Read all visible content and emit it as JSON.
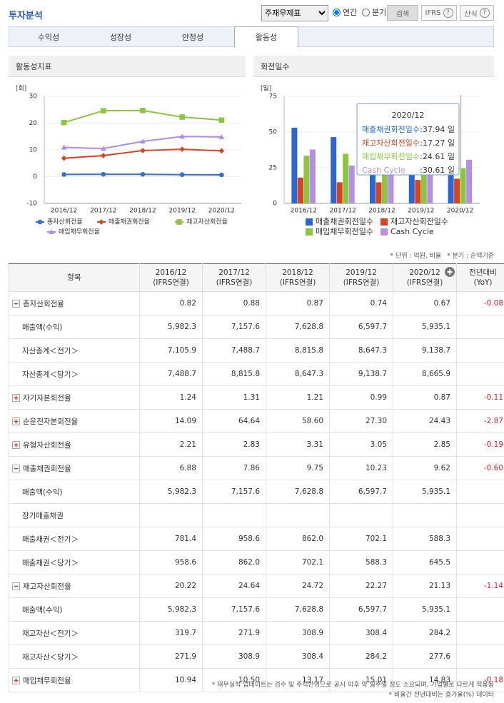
{
  "header": {
    "title": "투자분석",
    "select": "주재무제표",
    "radios": [
      {
        "label": "연간",
        "checked": true
      },
      {
        "label": "분기",
        "checked": false
      }
    ],
    "buttons": [
      {
        "label": "검색"
      },
      {
        "label": "IFRS",
        "help": "?"
      },
      {
        "label": "산식",
        "help": "?"
      }
    ]
  },
  "tabs": {
    "items": [
      "수익성",
      "성장성",
      "안정성",
      "활동성"
    ],
    "active": "활동성"
  },
  "chart_data": [
    {
      "type": "line",
      "title": "활동성지표",
      "y_label": "[회]",
      "categories": [
        "2016/12",
        "2017/12",
        "2018/12",
        "2019/12",
        "2020/12"
      ],
      "ylim": [
        -10,
        30
      ],
      "yticks": [
        -10,
        0,
        10,
        20,
        30
      ],
      "grid": true,
      "series": [
        {
          "name": "총자산회전율",
          "color": "#2f6fd6",
          "marker": "circle",
          "values": [
            0.82,
            0.88,
            0.87,
            0.74,
            0.67
          ]
        },
        {
          "name": "매출채권회전율",
          "color": "#d8431f",
          "marker": "diamond",
          "values": [
            6.88,
            7.86,
            9.75,
            10.23,
            9.62
          ]
        },
        {
          "name": "재고자산회전율",
          "color": "#8cc63f",
          "marker": "square",
          "values": [
            20.22,
            24.64,
            24.72,
            22.27,
            21.13
          ]
        },
        {
          "name": "매입채무회전율",
          "color": "#b08ae6",
          "marker": "triangle",
          "values": [
            10.94,
            10.5,
            13.17,
            15.01,
            14.83
          ]
        }
      ]
    },
    {
      "type": "bar",
      "title": "회전일수",
      "y_label": "[일]",
      "categories": [
        "2016/12",
        "2017/12",
        "2018/12",
        "2019/12",
        "2020/12"
      ],
      "ylim": [
        0,
        75
      ],
      "yticks": [
        0,
        25,
        50,
        75
      ],
      "grid": true,
      "hover_category": "2020/12",
      "series": [
        {
          "name": "매출채권회전일수",
          "color": "#2a67d6",
          "values": [
            53.05,
            46.44,
            37.44,
            35.68,
            37.94
          ],
          "tooltip_label": ":37.94 일"
        },
        {
          "name": "재고자산회전일수",
          "color": "#d8431f",
          "values": [
            18.05,
            14.81,
            14.77,
            16.39,
            17.27
          ],
          "tooltip_label": ":17.27 일"
        },
        {
          "name": "매입채무회전일수",
          "color": "#8cc63f",
          "values": [
            33.36,
            34.76,
            27.71,
            24.32,
            24.61
          ],
          "tooltip_label": ":24.61 일"
        },
        {
          "name": "Cash Cycle",
          "color": "#b68ee8",
          "values": [
            37.74,
            26.49,
            24.49,
            27.75,
            30.61
          ],
          "tooltip_label": ":30.61 일"
        }
      ]
    }
  ],
  "table": {
    "notes": [
      "* 단위 : 억원, 비율",
      "* 분기 : 순액기준"
    ],
    "columns": [
      [
        "항목"
      ],
      [
        "2016/12",
        "(IFRS연결)"
      ],
      [
        "2017/12",
        "(IFRS연결)"
      ],
      [
        "2018/12",
        "(IFRS연결)"
      ],
      [
        "2019/12",
        "(IFRS연결)"
      ],
      [
        "2020/12",
        "(IFRS연결)"
      ],
      [
        "전년대비",
        "(YoY)"
      ]
    ],
    "rows": [
      {
        "label": "총자산회전율",
        "toggle": "minus",
        "cells": [
          "0.82",
          "0.88",
          "0.87",
          "0.74",
          "0.67",
          "-0.08"
        ]
      },
      {
        "label": "매출액(수익)",
        "cells": [
          "5,982.3",
          "7,157.6",
          "7,628.8",
          "6,597.7",
          "5,935.1"
        ]
      },
      {
        "label": "자산총계＜전기＞",
        "cells": [
          "7,105.9",
          "7,488.7",
          "8,815.8",
          "8,647.3",
          "9,138.7"
        ]
      },
      {
        "label": "자산총계＜당기＞",
        "cells": [
          "7,488.7",
          "8,815.8",
          "8,647.3",
          "9,138.7",
          "8,665.9"
        ]
      },
      {
        "label": "자기자본회전율",
        "toggle": "plus",
        "cells": [
          "1.24",
          "1.31",
          "1.21",
          "0.99",
          "0.87",
          "-0.11"
        ]
      },
      {
        "label": "순운전자본회전율",
        "toggle": "plus",
        "cells": [
          "14.09",
          "64.64",
          "58.60",
          "27.30",
          "24.43",
          "-2.87"
        ]
      },
      {
        "label": "유형자산회전율",
        "toggle": "plus",
        "cells": [
          "2.21",
          "2.83",
          "3.31",
          "3.05",
          "2.85",
          "-0.19"
        ]
      },
      {
        "label": "매출채권회전율",
        "toggle": "minus",
        "cells": [
          "6.88",
          "7.86",
          "9.75",
          "10.23",
          "9.62",
          "-0.60"
        ]
      },
      {
        "label": "매출액(수익)",
        "cells": [
          "5,982.3",
          "7,157.6",
          "7,628.8",
          "6,597.7",
          "5,935.1"
        ]
      },
      {
        "label": "장기매출채권",
        "cells": [
          null,
          null,
          null,
          null,
          null
        ]
      },
      {
        "label": "매출채권＜전기＞",
        "cells": [
          "781.4",
          "958.6",
          "862.0",
          "702.1",
          "588.3"
        ]
      },
      {
        "label": "매출채권＜당기＞",
        "cells": [
          "958.6",
          "862.0",
          "702.1",
          "588.3",
          "645.5"
        ]
      },
      {
        "label": "재고자산회전율",
        "toggle": "minus",
        "cells": [
          "20.22",
          "24.64",
          "24.72",
          "22.27",
          "21.13",
          "-1.14"
        ]
      },
      {
        "label": "매출액(수익)",
        "cells": [
          "5,982.3",
          "7,157.6",
          "7,628.8",
          "6,597.7",
          "5,935.1"
        ]
      },
      {
        "label": "재고자산＜전기＞",
        "cells": [
          "319.7",
          "271.9",
          "308.9",
          "308.4",
          "284.2"
        ]
      },
      {
        "label": "재고자산＜당기＞",
        "cells": [
          "271.9",
          "308.9",
          "308.4",
          "284.2",
          "277.6"
        ]
      },
      {
        "label": "매입채무회전율",
        "toggle": "plus",
        "cells": [
          "10.94",
          "10.50",
          "13.17",
          "15.01",
          "14.83",
          "-0.18"
        ]
      }
    ]
  },
  "footnotes": [
    "* 재무실적 업데이트는 검수 및 주석반영으로 공시 이후 약 일주일 정도 소요되며, 기업별로 다르게 적용됨",
    "* 비율간 전년대비는 증가율(%) 데이터"
  ]
}
